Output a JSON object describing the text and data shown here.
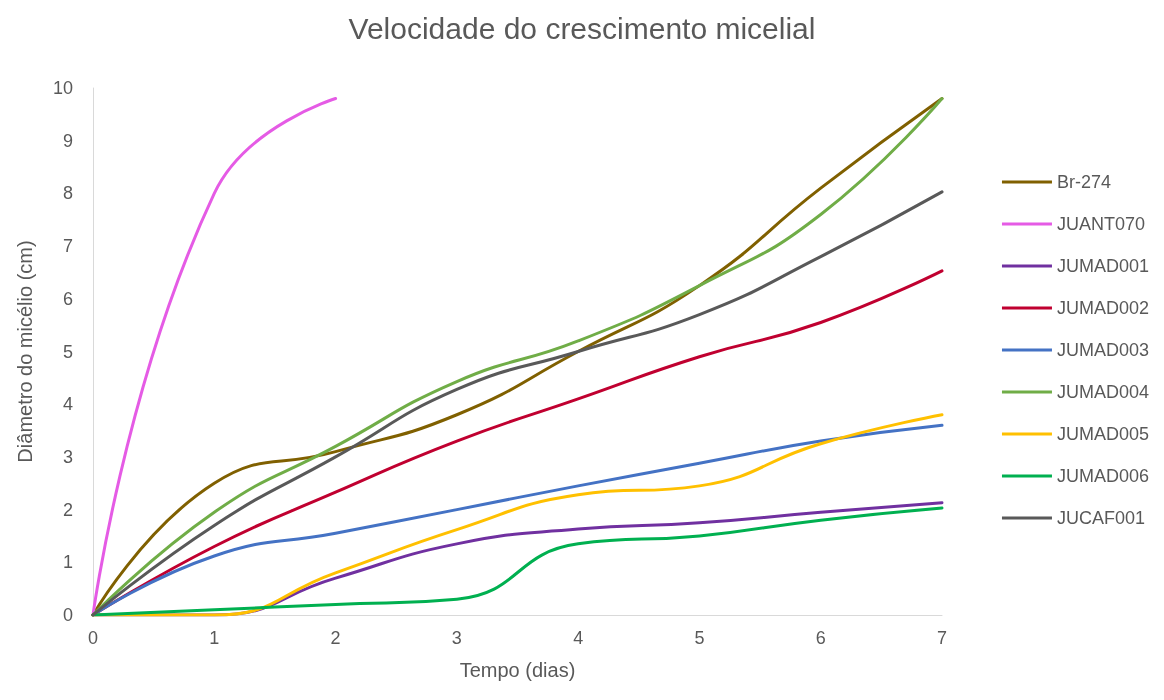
{
  "chart_data": {
    "type": "line",
    "title": "Velocidade do crescimento micelial",
    "xlabel": "Tempo (dias)",
    "ylabel": "Diâmetro do micélio (cm)",
    "x": [
      0,
      1,
      2,
      3,
      4,
      5,
      6,
      7
    ],
    "xlim": [
      0,
      7
    ],
    "xticks": [
      0,
      1,
      2,
      3,
      4,
      5,
      6,
      7
    ],
    "ylim": [
      0,
      10
    ],
    "yticks": [
      0,
      1,
      2,
      3,
      4,
      5,
      6,
      7,
      8,
      9,
      10
    ],
    "grid": false,
    "legend": "right",
    "marker": "none",
    "line_style": "solid",
    "series": [
      {
        "name": "Br-274",
        "color": "#806000",
        "values": [
          0,
          2.5,
          3.1,
          3.8,
          5.0,
          6.25,
          8.1,
          9.8
        ]
      },
      {
        "name": "JUANT070",
        "color": "#e55be5",
        "values": [
          0,
          8.0,
          9.8,
          null,
          null,
          null,
          null,
          null
        ]
      },
      {
        "name": "JUMAD001",
        "color": "#7030a0",
        "values": [
          0,
          0,
          0.7,
          1.35,
          1.63,
          1.75,
          1.95,
          2.13
        ]
      },
      {
        "name": "JUMAD002",
        "color": "#c00030",
        "values": [
          0,
          1.3,
          2.33,
          3.3,
          4.1,
          4.9,
          5.55,
          6.53
        ]
      },
      {
        "name": "JUMAD003",
        "color": "#4472c4",
        "values": [
          0,
          1.12,
          1.55,
          2.0,
          2.45,
          2.88,
          3.3,
          3.6
        ]
      },
      {
        "name": "JUMAD004",
        "color": "#70ad47",
        "values": [
          0,
          1.95,
          3.2,
          4.43,
          5.2,
          6.25,
          7.6,
          9.8
        ]
      },
      {
        "name": "JUMAD005",
        "color": "#ffc000",
        "values": [
          0,
          0,
          0.8,
          1.62,
          2.28,
          2.45,
          3.25,
          3.8
        ]
      },
      {
        "name": "JUMAD006",
        "color": "#00b050",
        "values": [
          0,
          0.1,
          0.2,
          0.3,
          1.35,
          1.5,
          1.8,
          2.03
        ]
      },
      {
        "name": "JUCAF001",
        "color": "#595959",
        "values": [
          0,
          1.7,
          3.0,
          4.28,
          5.0,
          5.7,
          6.8,
          8.03
        ]
      }
    ]
  }
}
